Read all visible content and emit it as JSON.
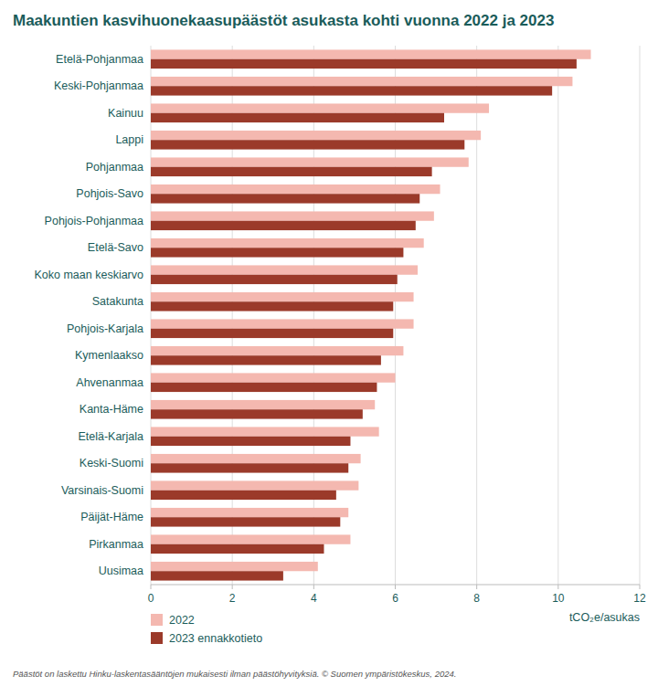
{
  "chart_data": {
    "type": "bar",
    "orientation": "horizontal",
    "title": "Maakuntien kasvihuonekaasupäästöt asukasta kohti vuonna 2022 ja 2023",
    "x_label": "tCO₂e/asukas",
    "annotations": [
      "Päästöt on laskettu Hinku-laskentasääntöjen mukaisesti ilman päästöhyvityksiä. © Suomen ympäristökeskus, 2024."
    ],
    "categories": [
      "Etelä-Pohjanmaa",
      "Keski-Pohjanmaa",
      "Kainuu",
      "Lappi",
      "Pohjanmaa",
      "Pohjois-Savo",
      "Pohjois-Pohjanmaa",
      "Etelä-Savo",
      "Koko maan keskiarvo",
      "Satakunta",
      "Pohjois-Karjala",
      "Kymenlaakso",
      "Ahvenanmaa",
      "Kanta-Häme",
      "Etelä-Karjala",
      "Keski-Suomi",
      "Varsinais-Suomi",
      "Päijät-Häme",
      "Pirkanmaa",
      "Uusimaa"
    ],
    "series": [
      {
        "name": "2022",
        "color": "#f4b8b0",
        "values": [
          10.8,
          10.35,
          8.3,
          8.1,
          7.8,
          7.1,
          6.95,
          6.7,
          6.55,
          6.45,
          6.45,
          6.2,
          6.0,
          5.5,
          5.6,
          5.15,
          5.1,
          4.85,
          4.9,
          4.1
        ]
      },
      {
        "name": "2023 ennakkotieto",
        "color": "#9b3a2a",
        "values": [
          10.45,
          9.85,
          7.2,
          7.7,
          6.9,
          6.6,
          6.5,
          6.2,
          6.05,
          5.95,
          5.95,
          5.65,
          5.55,
          5.2,
          4.9,
          4.85,
          4.55,
          4.65,
          4.25,
          3.25
        ]
      }
    ],
    "xlim": [
      0,
      12
    ],
    "xticks": [
      0,
      2,
      4,
      6,
      8,
      10,
      12
    ],
    "grid": true,
    "legend": "bottom"
  }
}
